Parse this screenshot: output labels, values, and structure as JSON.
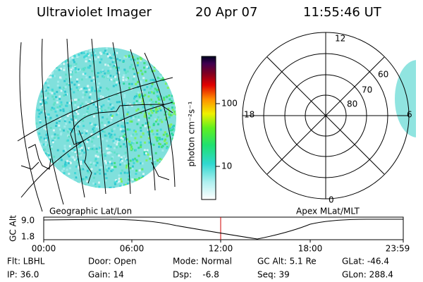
{
  "header": {
    "instrument": "Ultraviolet Imager",
    "date": "20 Apr 07",
    "time": "11:55:46 UT"
  },
  "colorbar": {
    "label": "photon cm⁻²s⁻¹",
    "ticks": [
      "100",
      "10"
    ]
  },
  "polar_plot": {
    "mlt_labels": [
      "12",
      "18",
      "6",
      "0"
    ],
    "mlat_labels": [
      "60",
      "70",
      "80"
    ]
  },
  "altitude_plot": {
    "axis_label": "GC Alt",
    "left_label": "Geographic Lat/Lon",
    "right_label": "Apex MLat/MLT",
    "yticks": [
      "9.0",
      "1.8"
    ],
    "xticks": [
      "00:00",
      "06:00",
      "12:00",
      "18:00",
      "23:59"
    ]
  },
  "status": {
    "rows": [
      [
        "Flt: LBHL",
        "Door: Open",
        "Mode: Normal",
        "GC Alt: 5.1 Re",
        "GLat: -46.4"
      ],
      [
        "IP: 36.0",
        "Gain: 14",
        "Dsp:    -6.8",
        "Seq: 39",
        "GLon: 288.4"
      ]
    ]
  }
}
